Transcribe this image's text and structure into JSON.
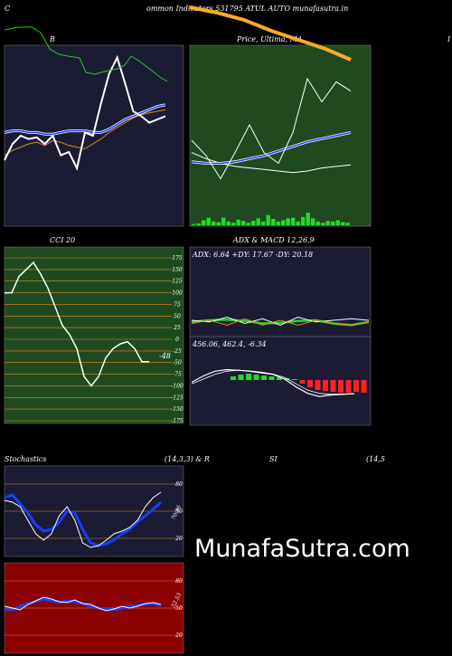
{
  "header": {
    "left_letter": "C",
    "title": "ommon  Indicators 531795 ATUL  AUTO munafasutra.in"
  },
  "panel_b": {
    "label": "B"
  },
  "panel_price": {
    "label": "Price,  Ultima,  MA"
  },
  "panel_cci": {
    "label": "CCI 20",
    "value_label": "-48"
  },
  "panel_adx": {
    "label": "ADX  & MACD 12,26,9",
    "adx_text": "ADX: 6.64   +DY: 17.67 -DY: 20.18",
    "macd_text": "456.06,  462.4,  -6.34"
  },
  "stoch_header": {
    "left": "Stochastics",
    "mid": "(14,3,3) & R",
    "si": "SI",
    "right": "(14,5"
  },
  "stoch_value": "70.96",
  "rsi_value": "52.53",
  "watermark": "MunafaSutra.com",
  "colors": {
    "background": "#000000",
    "panel_navy": "#1b1b33",
    "panel_green": "#1f4a20",
    "panel_red": "#8b0000",
    "orange": "#e08a24",
    "blue": "#1a3cff",
    "bright_green": "#22dd22"
  },
  "chart_data": [
    {
      "type": "line",
      "name": "bollinger_bands",
      "series": [
        {
          "values": [
            0.38,
            0.41,
            0.43,
            0.45,
            0.46,
            0.44,
            0.47,
            0.46,
            0.44,
            0.43,
            0.42,
            0.45,
            0.48,
            0.52,
            0.55,
            0.58,
            0.61,
            0.63,
            0.64,
            0.65,
            0.66
          ]
        },
        {
          "values": [
            0.52,
            0.53,
            0.53,
            0.52,
            0.52,
            0.51,
            0.51,
            0.52,
            0.53,
            0.53,
            0.53,
            0.52,
            0.52,
            0.54,
            0.57,
            0.6,
            0.62,
            0.64,
            0.66,
            0.68,
            0.69
          ]
        },
        {
          "values": [
            0.88,
            0.87,
            0.86,
            0.86,
            0.84,
            0.84,
            0.85,
            0.82,
            0.75,
            0.55,
            0.43,
            0.4,
            0.4,
            0.42,
            0.45,
            0.48,
            0.51,
            0.55,
            0.59,
            0.63,
            0.67
          ]
        },
        {
          "values": [
            0.35,
            0.45,
            0.5,
            0.48,
            0.49,
            0.45,
            0.5,
            0.38,
            0.4,
            0.3,
            0.52,
            0.5,
            0.7,
            0.88,
            0.98,
            0.82,
            0.65,
            0.62,
            0.58,
            0.6,
            0.62
          ]
        }
      ]
    },
    {
      "type": "line",
      "name": "price_ma",
      "series": [
        {
          "values": [
            0.42,
            0.38,
            0.35,
            0.33,
            0.32,
            0.31,
            0.3,
            0.29,
            0.3,
            0.32,
            0.33,
            0.34
          ]
        },
        {
          "values": [
            0.36,
            0.35,
            0.35,
            0.36,
            0.38,
            0.4,
            0.43,
            0.46,
            0.49,
            0.51,
            0.53,
            0.55
          ]
        },
        {
          "values": [
            0.5,
            0.4,
            0.25,
            0.42,
            0.6,
            0.42,
            0.35,
            0.55,
            0.9,
            0.75,
            0.88,
            0.82
          ]
        }
      ],
      "volume": [
        0.1,
        0.15,
        0.4,
        0.6,
        0.3,
        0.25,
        0.6,
        0.3,
        0.2,
        0.45,
        0.35,
        0.2,
        0.35,
        0.55,
        0.3,
        0.8,
        0.5,
        0.3,
        0.4,
        0.55,
        0.6,
        0.3,
        0.65,
        1.0,
        0.55,
        0.3,
        0.2,
        0.35,
        0.3,
        0.4,
        0.25,
        0.2
      ]
    },
    {
      "type": "line",
      "name": "cci",
      "ylim": [
        -175,
        175
      ],
      "y_ticks": [
        175,
        150,
        125,
        100,
        75,
        50,
        25,
        0,
        -25,
        -50,
        -75,
        -100,
        -125,
        -150,
        -175
      ],
      "values": [
        100,
        100,
        135,
        150,
        165,
        140,
        110,
        70,
        30,
        10,
        -20,
        -80,
        -100,
        -80,
        -40,
        -20,
        -10,
        -5,
        -20,
        -48,
        -48
      ]
    },
    {
      "type": "line",
      "name": "adx_macd",
      "series": [
        {
          "name": "ADX",
          "values": [
            0.55,
            0.6,
            0.62,
            0.58,
            0.5,
            0.52,
            0.58,
            0.6,
            0.5,
            0.45,
            0.55
          ]
        },
        {
          "name": "+DI",
          "values": [
            0.6,
            0.55,
            0.7,
            0.5,
            0.65,
            0.45,
            0.7,
            0.55,
            0.6,
            0.65,
            0.6
          ]
        },
        {
          "name": "-DI",
          "values": [
            0.5,
            0.6,
            0.45,
            0.65,
            0.45,
            0.6,
            0.45,
            0.6,
            0.5,
            0.45,
            0.55
          ]
        }
      ],
      "macd_hist": [
        0.2,
        0.3,
        0.35,
        0.3,
        0.25,
        0.2,
        0.15,
        0.1,
        0.05,
        -0.2,
        -0.4,
        -0.55,
        -0.6,
        -0.65,
        -0.7,
        -0.7,
        -0.65,
        -0.7
      ]
    },
    {
      "type": "line",
      "name": "stochastics",
      "y_ticks": [
        80,
        50,
        20
      ],
      "series": [
        {
          "values": [
            62,
            60,
            55,
            40,
            25,
            18,
            25,
            45,
            55,
            40,
            15,
            10,
            12,
            18,
            25,
            28,
            32,
            40,
            55,
            65,
            70.96
          ]
        },
        {
          "values": [
            65,
            68,
            58,
            48,
            35,
            28,
            30,
            38,
            50,
            48,
            30,
            15,
            12,
            14,
            18,
            25,
            30,
            38,
            45,
            52,
            60
          ]
        }
      ]
    },
    {
      "type": "line",
      "name": "rsi",
      "y_ticks": [
        80,
        50,
        20
      ],
      "series": [
        {
          "values": [
            48,
            48,
            52,
            55,
            57,
            60,
            58,
            56,
            58,
            57,
            55,
            52,
            50,
            49,
            48,
            50,
            52,
            53,
            54,
            55,
            52.53
          ]
        },
        {
          "values": [
            52,
            50,
            48,
            54,
            58,
            62,
            60,
            57,
            56,
            59,
            55,
            54,
            50,
            47,
            49,
            52,
            50,
            52,
            55,
            56,
            54
          ]
        }
      ]
    }
  ]
}
